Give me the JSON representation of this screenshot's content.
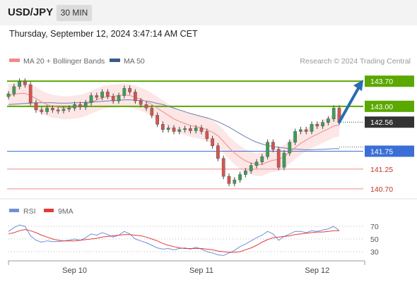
{
  "header": {
    "pair": "USD/JPY",
    "interval": "30 MIN",
    "timestamp": "Thursday, September 12, 2024 3:47:14 AM CET"
  },
  "legend": {
    "bollinger": "MA 20 + Bollinger Bands",
    "ma50": "MA 50",
    "source": "Research © 2024 Trading Central",
    "rsi": "RSI",
    "rsi_ma": "9MA"
  },
  "colors": {
    "green": "#5aa800",
    "blue_level": "#3b6fd6",
    "red_level": "#f08a8a",
    "candle_up": "#3aa055",
    "candle_down": "#d9534f",
    "band_fill": "#fde3e3",
    "ma20": "#f08a8a",
    "ma50": "#6b7fa8",
    "rsi": "#6f8fd8",
    "rsi_ma": "#e23b3b",
    "arrow": "#2b6cb0"
  },
  "chart_data": {
    "type": "candlestick",
    "y_range": [
      140.62,
      143.9
    ],
    "levels": [
      {
        "value": 143.7,
        "label": "143.70",
        "kind": "resistance",
        "style": "green-tag"
      },
      {
        "value": 143.0,
        "label": "143.00",
        "kind": "resistance",
        "style": "green-tag"
      },
      {
        "value": 142.56,
        "label": "142.56",
        "kind": "last-price",
        "style": "dark-tag"
      },
      {
        "value": 141.75,
        "label": "141.75",
        "kind": "pivot",
        "style": "blue-tag"
      },
      {
        "value": 141.25,
        "label": "141.25",
        "kind": "support",
        "style": "red-text"
      },
      {
        "value": 140.7,
        "label": "140.70",
        "kind": "support",
        "style": "red-text"
      }
    ],
    "x_labels": [
      "Sep 10",
      "Sep 11",
      "Sep 12"
    ],
    "closes": [
      143.35,
      143.55,
      143.7,
      143.6,
      143.1,
      142.9,
      142.85,
      142.95,
      142.9,
      142.88,
      142.92,
      142.95,
      143.05,
      142.98,
      143.1,
      143.3,
      143.25,
      143.4,
      143.28,
      143.15,
      143.3,
      143.5,
      143.4,
      143.15,
      143.05,
      142.95,
      142.75,
      142.5,
      142.35,
      142.4,
      142.3,
      142.35,
      142.38,
      142.32,
      142.4,
      142.3,
      142.1,
      141.9,
      141.55,
      141.05,
      140.85,
      140.95,
      141.1,
      141.2,
      141.35,
      141.45,
      141.6,
      142.0,
      141.8,
      141.3,
      141.7,
      142.0,
      142.3,
      142.35,
      142.3,
      142.5,
      142.45,
      142.55,
      142.65,
      142.95,
      142.56
    ],
    "trend_arrow": {
      "from": 142.56,
      "to": 143.7
    },
    "ma20": [
      143.3,
      143.33,
      143.36,
      143.36,
      143.3,
      143.22,
      143.12,
      143.05,
      143.0,
      142.98,
      142.96,
      142.96,
      142.98,
      143.0,
      143.05,
      143.12,
      143.18,
      143.24,
      143.27,
      143.28,
      143.3,
      143.32,
      143.3,
      143.25,
      143.2,
      143.13,
      143.05,
      142.95,
      142.85,
      142.75,
      142.65,
      142.58,
      142.52,
      142.47,
      142.44,
      142.4,
      142.35,
      142.28,
      142.18,
      142.02,
      141.85,
      141.7,
      141.58,
      141.48,
      141.42,
      141.38,
      141.38,
      141.45,
      141.5,
      141.52,
      141.6,
      141.72,
      141.85,
      141.97,
      142.06,
      142.15,
      142.22,
      142.3,
      142.37,
      142.45,
      142.48
    ],
    "ma50": [
      143.05,
      143.06,
      143.07,
      143.08,
      143.09,
      143.1,
      143.1,
      143.1,
      143.1,
      143.09,
      143.09,
      143.09,
      143.1,
      143.1,
      143.11,
      143.12,
      143.13,
      143.14,
      143.15,
      143.16,
      143.17,
      143.18,
      143.18,
      143.17,
      143.16,
      143.15,
      143.12,
      143.08,
      143.05,
      143.0,
      142.95,
      142.9,
      142.85,
      142.8,
      142.76,
      142.72,
      142.68,
      142.63,
      142.57,
      142.5,
      142.42,
      142.33,
      142.24,
      142.15,
      142.07,
      142.0,
      141.95,
      141.91,
      141.88,
      141.86,
      141.84,
      141.82,
      141.81,
      141.8,
      141.79,
      141.79,
      141.8,
      141.8,
      141.81,
      141.82,
      141.82
    ],
    "rsi": {
      "ticks": [
        70,
        50,
        30
      ],
      "range": [
        20,
        80
      ],
      "values": [
        62,
        68,
        72,
        70,
        55,
        48,
        45,
        47,
        46,
        46,
        47,
        48,
        50,
        48,
        52,
        58,
        56,
        60,
        57,
        53,
        56,
        62,
        58,
        50,
        47,
        44,
        40,
        36,
        34,
        35,
        33,
        35,
        36,
        34,
        37,
        34,
        30,
        28,
        25,
        24,
        28,
        32,
        38,
        42,
        47,
        52,
        56,
        62,
        58,
        48,
        54,
        58,
        62,
        62,
        60,
        63,
        62,
        64,
        66,
        70,
        63
      ],
      "ma9": [
        58,
        60,
        63,
        65,
        63,
        60,
        56,
        53,
        50,
        48,
        47,
        47,
        47,
        48,
        49,
        50,
        51,
        53,
        54,
        55,
        56,
        57,
        57,
        56,
        55,
        53,
        50,
        47,
        43,
        40,
        38,
        36,
        35,
        35,
        35,
        35,
        34,
        33,
        31,
        30,
        29,
        29,
        30,
        33,
        36,
        40,
        45,
        49,
        52,
        53,
        54,
        55,
        57,
        58,
        59,
        60,
        61,
        61,
        62,
        63,
        63
      ]
    }
  }
}
